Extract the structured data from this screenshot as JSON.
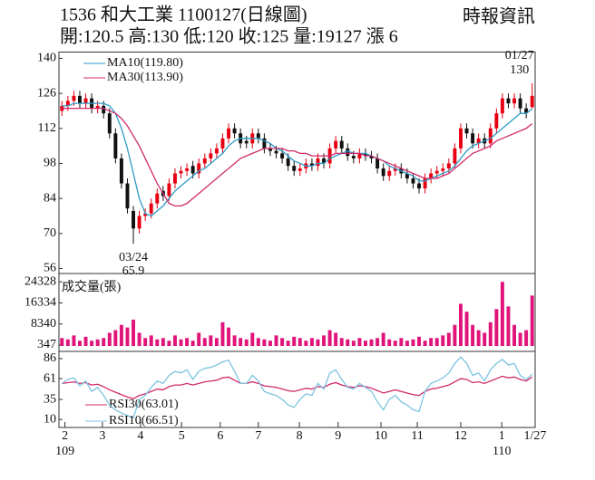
{
  "chart_data": {
    "type": "candlestick",
    "title": "1536  和大工業 1100127(日線圖)",
    "subtitle": "開:120.5 高:130 低:120 收:125 量:19127 漲 6",
    "source": "時報資訊",
    "xlim": [
      0,
      80
    ],
    "xticks": [
      {
        "value": 1,
        "label": "2"
      },
      {
        "value": 7.3,
        "label": "3"
      },
      {
        "value": 13.7,
        "label": "4"
      },
      {
        "value": 20.6,
        "label": "5"
      },
      {
        "value": 27.1,
        "label": "6"
      },
      {
        "value": 33.5,
        "label": "7"
      },
      {
        "value": 40.4,
        "label": "8"
      },
      {
        "value": 46.9,
        "label": "9"
      },
      {
        "value": 54.1,
        "label": "10"
      },
      {
        "value": 60.2,
        "label": "11"
      },
      {
        "value": 67.5,
        "label": "12"
      },
      {
        "value": 74.4,
        "label": "1"
      },
      {
        "value": 80,
        "label": "1/27"
      }
    ],
    "xsublabels": [
      {
        "value": 1,
        "label": "109"
      },
      {
        "value": 74.4,
        "label": "110"
      }
    ],
    "ylim": [
      54,
      142.5
    ],
    "yticks": [
      140,
      126,
      112,
      98,
      84,
      70,
      56
    ],
    "up_color": "#e60012",
    "down_color": "#111111",
    "open": [
      119,
      121,
      123,
      125,
      122,
      124,
      120,
      121,
      118,
      110,
      100,
      90,
      79,
      72,
      77,
      78,
      82,
      87,
      85,
      90,
      94,
      95,
      97,
      94,
      98,
      100,
      102,
      104,
      108,
      112,
      110,
      107,
      106,
      110,
      108,
      104,
      103,
      102,
      100,
      97,
      95,
      96,
      98,
      97,
      100,
      98,
      104,
      107,
      104,
      101,
      100,
      102,
      101,
      100,
      96,
      93,
      95,
      96,
      94,
      92,
      90,
      88,
      92,
      94,
      95,
      96,
      98,
      104,
      112,
      110,
      106,
      108,
      106,
      112,
      118,
      124,
      122,
      124,
      120,
      120.5
    ],
    "high": [
      123,
      125,
      127,
      127,
      126,
      126,
      123,
      123,
      120,
      112,
      102,
      92,
      81,
      79,
      80,
      84,
      88,
      89,
      92,
      96,
      97,
      98,
      99,
      100,
      102,
      104,
      106,
      110,
      114,
      114,
      112,
      109,
      112,
      112,
      110,
      106,
      105,
      104,
      102,
      99,
      98,
      100,
      100,
      102,
      102,
      106,
      109,
      109,
      106,
      103,
      104,
      104,
      103,
      102,
      98,
      97,
      98,
      98,
      96,
      94,
      92,
      94,
      96,
      97,
      98,
      100,
      106,
      114,
      114,
      112,
      110,
      110,
      114,
      120,
      126,
      126,
      126,
      126,
      122,
      130
    ],
    "low": [
      117,
      119,
      121,
      120,
      120,
      118,
      118,
      116,
      108,
      98,
      88,
      78,
      65.9,
      70,
      75,
      76,
      80,
      83,
      83,
      88,
      92,
      93,
      92,
      92,
      96,
      98,
      100,
      102,
      106,
      108,
      104,
      104,
      104,
      106,
      102,
      101,
      100,
      98,
      95,
      93,
      93,
      94,
      95,
      95,
      96,
      96,
      102,
      102,
      99,
      98,
      98,
      99,
      98,
      94,
      91,
      91,
      93,
      92,
      90,
      88,
      86,
      86,
      90,
      92,
      93,
      94,
      96,
      102,
      108,
      104,
      104,
      104,
      104,
      110,
      116,
      120,
      120,
      118,
      116,
      120
    ],
    "close": [
      121,
      123,
      125,
      122,
      124,
      120,
      121,
      118,
      110,
      100,
      90,
      80,
      72,
      77,
      78,
      82,
      86,
      85,
      90,
      94,
      95,
      96,
      94,
      98,
      100,
      102,
      104,
      108,
      112,
      110,
      106,
      106,
      110,
      108,
      104,
      103,
      102,
      100,
      97,
      95,
      96,
      98,
      97,
      100,
      98,
      104,
      107,
      104,
      101,
      100,
      102,
      101,
      100,
      96,
      93,
      95,
      96,
      94,
      92,
      90,
      88,
      92,
      94,
      95,
      96,
      98,
      104,
      112,
      110,
      106,
      108,
      106,
      112,
      118,
      124,
      122,
      124,
      120,
      118,
      125
    ],
    "low_label": {
      "date": "03/24",
      "value": 65.9
    },
    "high_label": {
      "date": "01/27",
      "value": 130
    },
    "series": [
      {
        "name": "MA10(119.80)",
        "color": "#2f9bc4",
        "values": [
          121,
          121,
          122,
          122,
          122,
          122,
          122,
          122,
          121,
          118,
          112,
          104,
          94,
          84,
          78,
          77,
          79,
          81,
          84,
          87,
          89,
          91,
          93,
          95,
          96,
          98,
          100,
          102,
          105,
          107,
          108,
          108,
          108,
          108,
          107,
          106,
          104,
          103,
          101,
          99,
          98,
          97,
          97,
          98,
          98,
          100,
          101,
          102,
          103,
          102,
          102,
          102,
          101,
          100,
          99,
          97,
          96,
          95,
          94,
          93,
          91,
          91,
          92,
          93,
          94,
          95,
          97,
          100,
          103,
          105,
          106,
          107,
          108,
          110,
          112,
          114,
          116,
          118,
          118,
          119.8
        ]
      },
      {
        "name": "MA30(113.90)",
        "color": "#d02a6a",
        "values": [
          120,
          120,
          120,
          120,
          120,
          120,
          120,
          120,
          119,
          118,
          116,
          113,
          109,
          105,
          100,
          95,
          90,
          86,
          82,
          81,
          81,
          82,
          84,
          86,
          88,
          90,
          92,
          94,
          96,
          98,
          100,
          101,
          102,
          103,
          104,
          104,
          104,
          104,
          103,
          103,
          102,
          102,
          101,
          101,
          101,
          101,
          102,
          102,
          102,
          102,
          102,
          101,
          101,
          100,
          99,
          98,
          97,
          96,
          95,
          94,
          93,
          92,
          92,
          92,
          93,
          94,
          96,
          98,
          100,
          102,
          103,
          104,
          105,
          107,
          108,
          109,
          110,
          111,
          112,
          113.9
        ]
      }
    ],
    "volume": {
      "title": "成交量(張)",
      "color": "#e0147a",
      "ylim": [
        0,
        27500
      ],
      "yticks": [
        24328,
        16334,
        8340,
        347
      ],
      "values": [
        3000,
        2500,
        4000,
        2000,
        3500,
        2000,
        2500,
        3000,
        5000,
        6000,
        8000,
        7000,
        10000,
        5000,
        3000,
        4000,
        2500,
        3000,
        2000,
        4000,
        2500,
        3000,
        2000,
        5000,
        3000,
        4000,
        3000,
        9000,
        7000,
        4000,
        3000,
        2500,
        5000,
        3000,
        2500,
        2000,
        4000,
        3000,
        2000,
        3500,
        3000,
        2000,
        3000,
        2500,
        4000,
        6000,
        5000,
        3000,
        2500,
        2000,
        3000,
        2000,
        2500,
        3000,
        5000,
        2500,
        2000,
        3000,
        2000,
        2500,
        3500,
        2000,
        3000,
        3000,
        4000,
        5000,
        8000,
        16000,
        13000,
        8000,
        6000,
        5000,
        9000,
        14000,
        24328,
        15000,
        8000,
        5000,
        6000,
        19127
      ]
    },
    "rsi": {
      "ylim": [
        0,
        95
      ],
      "yticks": [
        86,
        61,
        35,
        10
      ],
      "series": [
        {
          "name": "RSI30(63.01)",
          "color": "#d02a6a",
          "values": [
            55,
            56,
            57,
            55,
            56,
            53,
            54,
            51,
            47,
            44,
            41,
            38,
            36,
            40,
            42,
            45,
            48,
            47,
            51,
            53,
            53,
            55,
            53,
            55,
            57,
            58,
            59,
            62,
            63,
            59,
            55,
            55,
            57,
            55,
            52,
            51,
            50,
            48,
            46,
            45,
            47,
            49,
            48,
            51,
            50,
            54,
            56,
            53,
            51,
            50,
            52,
            51,
            49,
            46,
            43,
            45,
            47,
            45,
            43,
            41,
            40,
            45,
            48,
            49,
            51,
            53,
            57,
            61,
            60,
            56,
            57,
            55,
            58,
            61,
            64,
            62,
            63,
            60,
            58,
            63.01
          ]
        },
        {
          "name": "RSI10(66.51)",
          "color": "#7cc4e0",
          "values": [
            55,
            60,
            62,
            52,
            58,
            45,
            50,
            40,
            28,
            22,
            18,
            15,
            12,
            35,
            40,
            50,
            58,
            55,
            65,
            70,
            68,
            72,
            60,
            70,
            74,
            75,
            78,
            82,
            84,
            70,
            55,
            55,
            65,
            58,
            45,
            42,
            40,
            35,
            28,
            25,
            35,
            42,
            40,
            55,
            48,
            68,
            72,
            60,
            50,
            48,
            55,
            50,
            45,
            32,
            22,
            35,
            40,
            32,
            28,
            22,
            20,
            45,
            55,
            58,
            62,
            68,
            80,
            88,
            80,
            65,
            68,
            58,
            72,
            80,
            85,
            78,
            80,
            65,
            60,
            66.51
          ]
        }
      ]
    }
  }
}
